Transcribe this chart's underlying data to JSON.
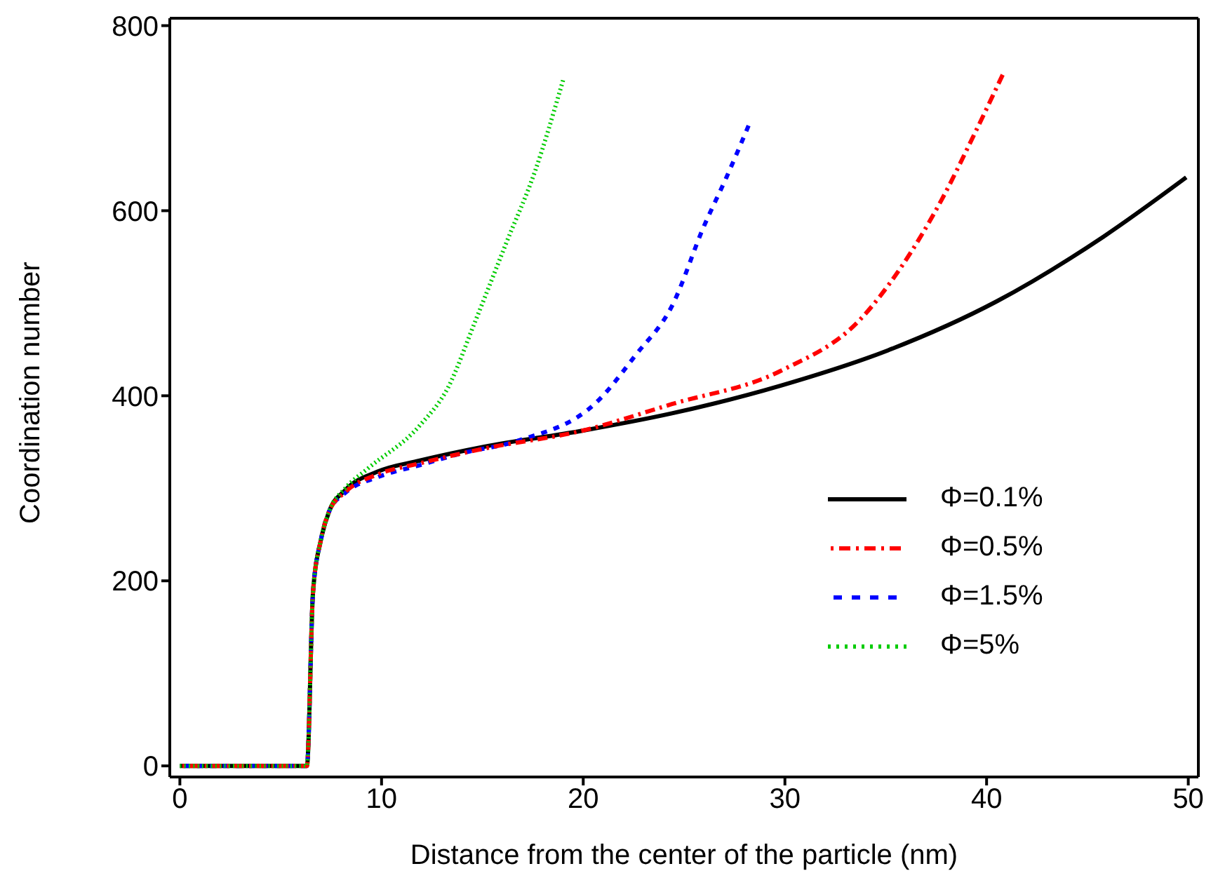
{
  "chart_data": {
    "type": "line",
    "xlabel": "Distance from the center of the particle (nm)",
    "ylabel": "Coordination number",
    "xlim": [
      -0.5,
      50.5
    ],
    "ylim": [
      -12,
      808
    ],
    "xticks": [
      0,
      10,
      20,
      30,
      40,
      50
    ],
    "yticks": [
      0,
      200,
      400,
      600,
      800
    ],
    "grid": false,
    "legend": "right",
    "marker": "none",
    "series": [
      {
        "name": "Φ=0.1%",
        "color": "#000000",
        "line_style": "solid",
        "x": [
          0,
          6.3,
          6.6,
          7.0,
          7.4,
          8.2,
          9.8,
          11.9,
          15.1,
          19.9,
          24.4,
          29.8,
          35.1,
          40.5,
          45.8,
          49.9
        ],
        "values": [
          0,
          0,
          187,
          245,
          275,
          298,
          318,
          330,
          345,
          362,
          381,
          411,
          449,
          502,
          572,
          636
        ]
      },
      {
        "name": "Φ=0.5%",
        "color": "#ff0000",
        "line_style": "dashdot",
        "x": [
          0,
          6.3,
          6.6,
          7.0,
          7.4,
          8.2,
          9.8,
          11.9,
          15.1,
          19.9,
          24.4,
          29.8,
          33.8,
          35.7,
          37.8,
          39.4,
          40.8
        ],
        "values": [
          0,
          0,
          187,
          245,
          275,
          296,
          315,
          327,
          343,
          362,
          391,
          427,
          484,
          537,
          613,
          683,
          747
        ]
      },
      {
        "name": "Φ=1.5%",
        "color": "#0000ff",
        "line_style": "dashed",
        "x": [
          0,
          6.3,
          6.6,
          7.0,
          7.4,
          8.2,
          9.8,
          11.9,
          14.0,
          16.7,
          20.8,
          22.6,
          24.4,
          26.0,
          27.1,
          28.2
        ],
        "values": [
          0,
          0,
          187,
          245,
          275,
          295,
          312,
          325,
          338,
          351,
          396,
          444,
          497,
          584,
          636,
          692
        ]
      },
      {
        "name": "Φ=5%",
        "color": "#00cc00",
        "line_style": "dotted",
        "x": [
          0,
          6.3,
          6.6,
          7.0,
          7.4,
          8.2,
          9.3,
          11.9,
          13.3,
          14.6,
          16.2,
          17.6,
          19.0
        ],
        "values": [
          0,
          0,
          187,
          245,
          275,
          300,
          321,
          368,
          409,
          478,
          566,
          642,
          741
        ]
      }
    ]
  }
}
